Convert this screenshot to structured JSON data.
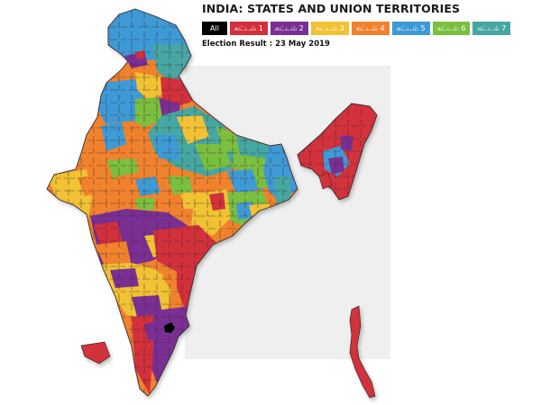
{
  "header": {
    "title": "INDIA: STATES AND UNION TERRITORIES",
    "subtitle": "Election Result : 23 May 2019"
  },
  "phases": [
    {
      "label": "All",
      "color": "#000000"
    },
    {
      "label": "கட்டம் 1",
      "color": "#d2303b"
    },
    {
      "label": "கட்டம் 2",
      "color": "#7a2f94"
    },
    {
      "label": "கட்டம் 3",
      "color": "#f0c234"
    },
    {
      "label": "கட்டம் 4",
      "color": "#f0822e"
    },
    {
      "label": "கட்டம் 5",
      "color": "#3e9ad6"
    },
    {
      "label": "கட்டம் 6",
      "color": "#7bbf3f"
    },
    {
      "label": "கட்டம் 7",
      "color": "#46a6a2"
    }
  ]
}
